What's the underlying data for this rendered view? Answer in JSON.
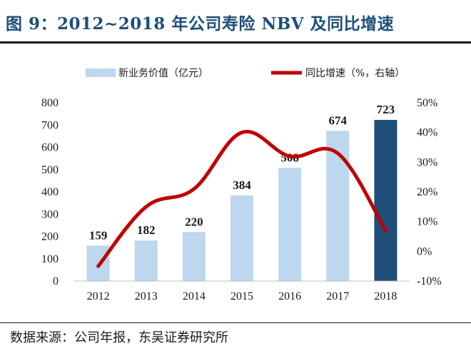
{
  "title": "图 9：2012~2018 年公司寿险 NBV 及同比增速",
  "source": "数据来源：公司年报，东吴证券研究所",
  "colors": {
    "bar": "#bdd7ee",
    "bar_highlight": "#1f4e79",
    "line": "#c00000",
    "title": "#1f4e79"
  },
  "chart_data": {
    "type": "bar",
    "categories": [
      "2012",
      "2013",
      "2014",
      "2015",
      "2016",
      "2017",
      "2018"
    ],
    "series": [
      {
        "name": "新业务价值（亿元）",
        "type": "bar",
        "axis": "left",
        "values": [
          159,
          182,
          220,
          384,
          508,
          674,
          723
        ],
        "data_labels": [
          "159",
          "182",
          "220",
          "384",
          "508",
          "674",
          "723"
        ],
        "highlight_index": 6
      },
      {
        "name": "同比增速（%，右轴）",
        "type": "line",
        "axis": "right",
        "values": [
          -5,
          15,
          21,
          40,
          32,
          33,
          7
        ]
      }
    ],
    "ylim_left": [
      0,
      800
    ],
    "yticks_left": [
      "0",
      "100",
      "200",
      "300",
      "400",
      "500",
      "600",
      "700",
      "800"
    ],
    "ylim_right": [
      -10,
      50
    ],
    "yticks_right": [
      "-10%",
      "0%",
      "10%",
      "20%",
      "30%",
      "40%",
      "50%"
    ],
    "legend_position": "top",
    "grid": false
  }
}
